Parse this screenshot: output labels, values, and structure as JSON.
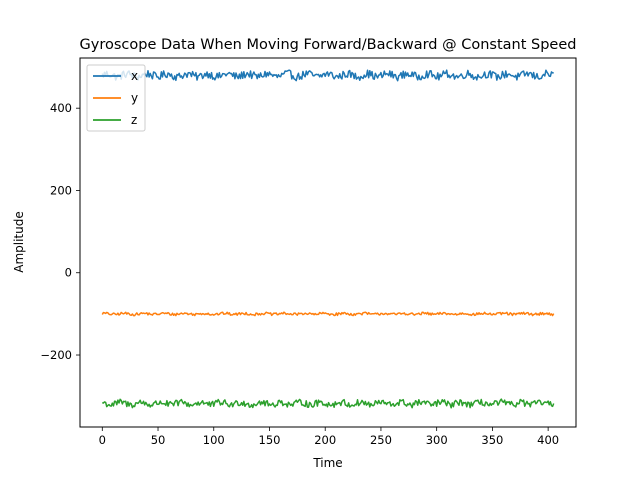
{
  "chart_data": {
    "type": "line",
    "title": "Gyroscope Data When Moving Forward/Backward @ Constant Speed",
    "xlabel": "Time",
    "ylabel": "Amplitude",
    "xlim": [
      -20,
      425
    ],
    "ylim": [
      -375,
      522
    ],
    "x_ticks": [
      0,
      50,
      100,
      150,
      200,
      250,
      300,
      350,
      400
    ],
    "y_ticks": [
      -200,
      0,
      200,
      400
    ],
    "y_tick_labels": [
      "−200",
      "0",
      "200",
      "400"
    ],
    "grid": false,
    "legend_position": "top-left",
    "x_range": [
      0,
      405
    ],
    "series": [
      {
        "name": "x",
        "color": "#1f77b4",
        "mean": 480,
        "noise_amplitude": 12
      },
      {
        "name": "y",
        "color": "#ff7f0e",
        "mean": -100,
        "noise_amplitude": 4
      },
      {
        "name": "z",
        "color": "#2ca02c",
        "mean": -318,
        "noise_amplitude": 10
      }
    ]
  }
}
